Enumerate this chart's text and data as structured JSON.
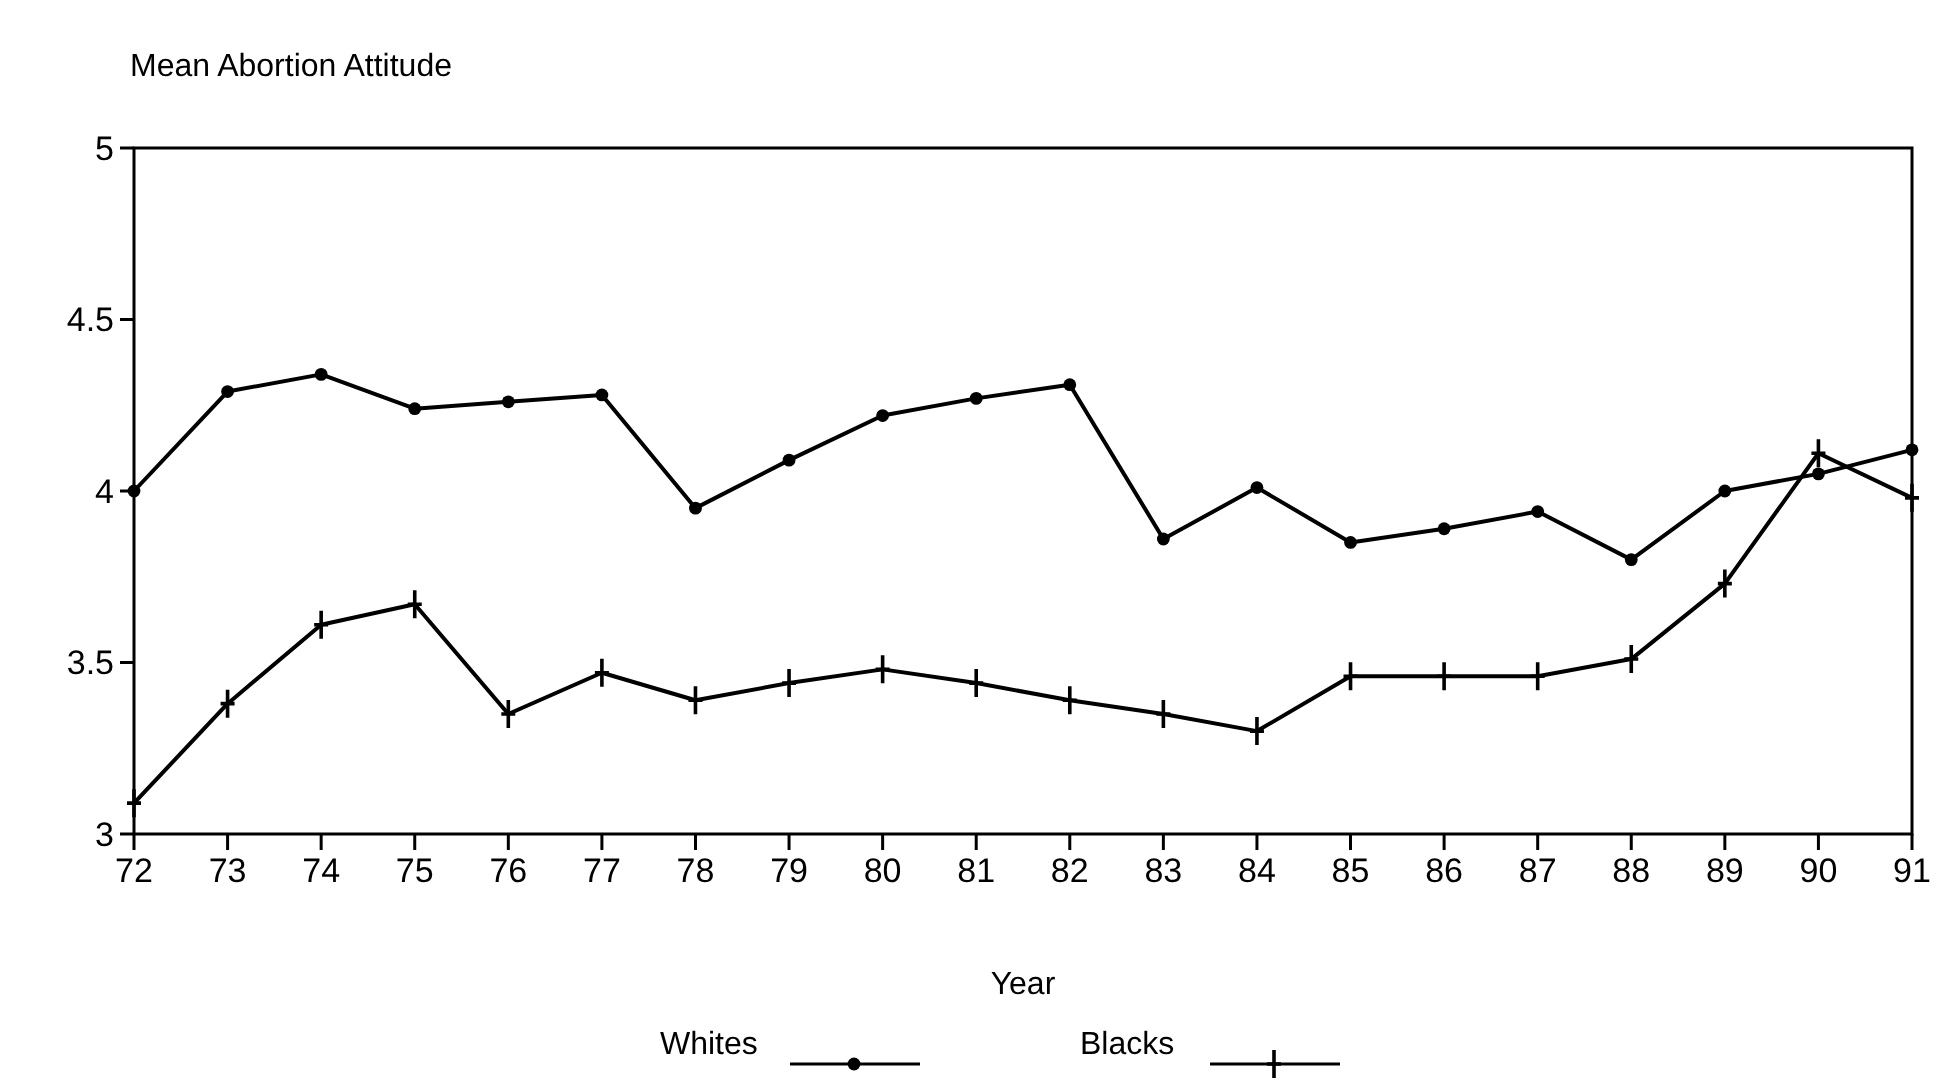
{
  "chart_data": {
    "type": "line",
    "ylabel": "Mean Abortion Attitude",
    "xlabel": "Year",
    "x": [
      72,
      73,
      74,
      75,
      76,
      77,
      78,
      79,
      80,
      81,
      82,
      83,
      84,
      85,
      86,
      87,
      88,
      89,
      90,
      91
    ],
    "xlim": [
      72,
      91
    ],
    "xticks": [
      72,
      73,
      74,
      75,
      76,
      77,
      78,
      79,
      80,
      81,
      82,
      83,
      84,
      85,
      86,
      87,
      88,
      89,
      90,
      91
    ],
    "ylim": [
      3,
      5
    ],
    "yticks": [
      3,
      3.5,
      4,
      4.5,
      5
    ],
    "grid": false,
    "legend": "bottom",
    "line_style": "solid",
    "series": [
      {
        "name": "Whites",
        "color": "#000000",
        "marker": "circle",
        "values": [
          4.0,
          4.29,
          4.34,
          4.24,
          4.26,
          4.28,
          3.95,
          4.09,
          4.22,
          4.27,
          4.31,
          3.86,
          4.01,
          3.85,
          3.89,
          3.94,
          3.8,
          4.0,
          4.05,
          4.12
        ]
      },
      {
        "name": "Blacks",
        "color": "#000000",
        "marker": "cross",
        "values": [
          3.09,
          3.38,
          3.61,
          3.67,
          3.35,
          3.47,
          3.39,
          3.44,
          3.48,
          3.44,
          3.39,
          3.35,
          3.3,
          3.46,
          3.46,
          3.46,
          3.51,
          3.73,
          4.11,
          3.98
        ]
      }
    ]
  }
}
